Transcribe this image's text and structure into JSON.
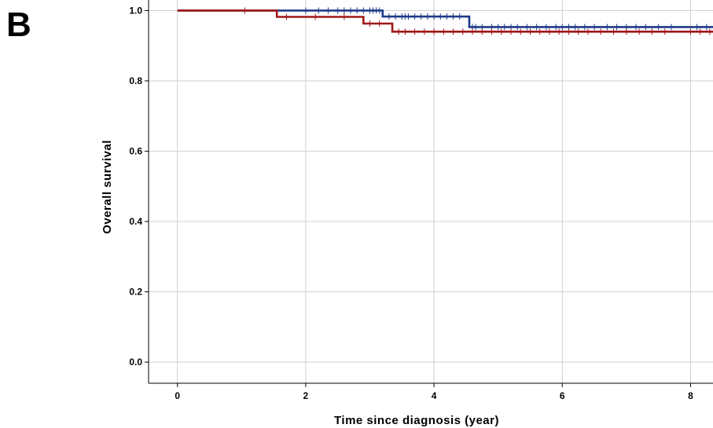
{
  "panel_label": "B",
  "chart_data": {
    "type": "line",
    "title": "",
    "xlabel": "Time since diagnosis (year)",
    "ylabel": "Overall survival",
    "xlim": [
      -0.45,
      8.35
    ],
    "ylim": [
      -0.06,
      1.03
    ],
    "xticks": [
      0,
      2,
      4,
      6,
      8
    ],
    "yticks": [
      0.0,
      0.2,
      0.4,
      0.6,
      0.8,
      1.0
    ],
    "xtick_labels": [
      "0",
      "2",
      "4",
      "6",
      "8"
    ],
    "ytick_labels": [
      "0.0",
      "0.2",
      "0.4",
      "0.6",
      "0.8",
      "1.0"
    ],
    "grid": true,
    "legend": "none",
    "series": [
      {
        "color": "#1f3a8a",
        "step_x": [
          0,
          3.2,
          4.55,
          8.35
        ],
        "step_y": [
          1.0,
          0.983,
          0.953,
          0.953
        ],
        "censored_x": [
          2.0,
          2.2,
          2.35,
          2.5,
          2.6,
          2.7,
          2.8,
          2.9,
          3.0,
          3.05,
          3.1,
          3.15,
          3.3,
          3.4,
          3.5,
          3.55,
          3.6,
          3.7,
          3.8,
          3.9,
          4.0,
          4.1,
          4.2,
          4.3,
          4.4,
          4.6,
          4.65,
          4.75,
          4.9,
          5.0,
          5.1,
          5.2,
          5.3,
          5.45,
          5.6,
          5.75,
          5.9,
          6.0,
          6.1,
          6.2,
          6.35,
          6.5,
          6.7,
          6.85,
          7.0,
          7.15,
          7.3,
          7.5,
          7.7,
          8.1,
          8.25
        ]
      },
      {
        "color": "#a01818",
        "step_x": [
          0,
          1.55,
          2.9,
          3.35,
          8.35
        ],
        "step_y": [
          1.0,
          0.982,
          0.963,
          0.94,
          0.94
        ],
        "censored_x": [
          1.05,
          1.7,
          2.15,
          2.6,
          3.0,
          3.15,
          3.45,
          3.55,
          3.7,
          3.85,
          4.0,
          4.15,
          4.3,
          4.45,
          4.6,
          4.75,
          4.9,
          5.05,
          5.2,
          5.35,
          5.5,
          5.65,
          5.8,
          5.95,
          6.1,
          6.25,
          6.4,
          6.6,
          6.8,
          7.0,
          7.2,
          7.4,
          7.6,
          8.0,
          8.15,
          8.3
        ]
      }
    ]
  }
}
